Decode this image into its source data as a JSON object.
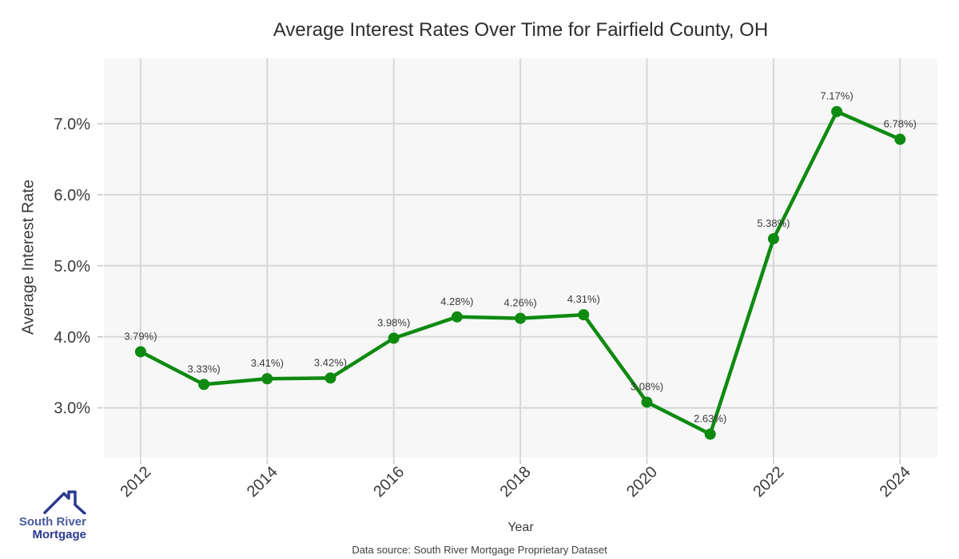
{
  "chart_data": {
    "type": "line",
    "title": "Average Interest Rates Over Time for Fairfield County, OH",
    "xlabel": "Year",
    "ylabel": "Average Interest Rate",
    "x": [
      2012,
      2013,
      2014,
      2015,
      2016,
      2017,
      2018,
      2019,
      2020,
      2021,
      2022,
      2023,
      2024
    ],
    "values": [
      3.79,
      3.33,
      3.41,
      3.42,
      3.98,
      4.28,
      4.26,
      4.31,
      3.08,
      2.63,
      5.38,
      7.17,
      6.78
    ],
    "point_labels": [
      "3.79%)",
      "3.33%)",
      "3.41%)",
      "3.42%)",
      "3.98%)",
      "4.28%)",
      "4.26%)",
      "4.31%)",
      "3.08%)",
      "2.63%)",
      "5.38%)",
      "7.17%)",
      "6.78%)"
    ],
    "x_ticks": [
      {
        "value": 2012,
        "label": "2012"
      },
      {
        "value": 2014,
        "label": "2014"
      },
      {
        "value": 2016,
        "label": "2016"
      },
      {
        "value": 2018,
        "label": "2018"
      },
      {
        "value": 2020,
        "label": "2020"
      },
      {
        "value": 2022,
        "label": "2022"
      },
      {
        "value": 2024,
        "label": "2024"
      }
    ],
    "y_ticks": [
      {
        "value": 3,
        "label": "3.0%"
      },
      {
        "value": 4,
        "label": "4.0%"
      },
      {
        "value": 5,
        "label": "5.0%"
      },
      {
        "value": 6,
        "label": "6.0%"
      },
      {
        "value": 7,
        "label": "7.0%"
      }
    ],
    "xlim": [
      2011.42,
      2024.59
    ],
    "ylim": [
      2.3,
      7.92
    ],
    "grid": true,
    "legend": "none",
    "style": {
      "line_color": "#0e8a10",
      "marker_color": "#0e8a10",
      "plot_bg": "#f7f7f7",
      "grid_color": "#d7d7d7",
      "tick_color": "#c9c9c9",
      "text_color": "#3a3a3a",
      "title_color": "#2d2d2d"
    }
  },
  "source_note": "Data source: South River Mortgage Proprietary Dataset",
  "logo": {
    "line1": "South River",
    "line2": "Mortgage",
    "color1": "#4a5b9e",
    "color2": "#2b3a8f",
    "icon": "house-roof-icon",
    "icon_color": "#2b3a8f"
  }
}
